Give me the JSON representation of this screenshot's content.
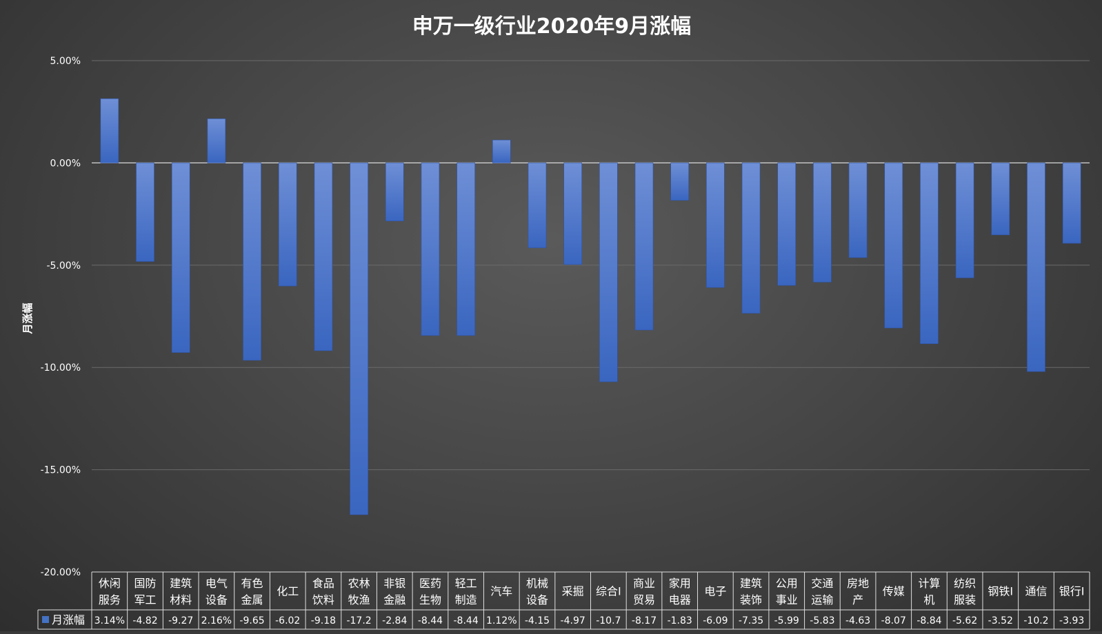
{
  "chart_data": {
    "type": "bar",
    "title": "申万一级行业2020年9月涨幅",
    "ylabel": "月涨幅",
    "ylim": [
      -20,
      5
    ],
    "yticks": [
      5,
      0,
      -5,
      -10,
      -15,
      -20
    ],
    "ytick_labels": [
      "5.00%",
      "0.00%",
      "-5.00%",
      "-10.00%",
      "-15.00%",
      "-20.00%"
    ],
    "grid": true,
    "data_table": true,
    "bar_color": "#4472c4",
    "categories": [
      [
        "休闲",
        "服务"
      ],
      [
        "国防",
        "军工"
      ],
      [
        "建筑",
        "材料"
      ],
      [
        "电气",
        "设备"
      ],
      [
        "有色",
        "金属"
      ],
      [
        "化工"
      ],
      [
        "食品",
        "饮料"
      ],
      [
        "农林",
        "牧渔"
      ],
      [
        "非银",
        "金融"
      ],
      [
        "医药",
        "生物"
      ],
      [
        "轻工",
        "制造"
      ],
      [
        "汽车"
      ],
      [
        "机械",
        "设备"
      ],
      [
        "采掘"
      ],
      [
        "综合Ⅰ"
      ],
      [
        "商业",
        "贸易"
      ],
      [
        "家用",
        "电器"
      ],
      [
        "电子"
      ],
      [
        "建筑",
        "装饰"
      ],
      [
        "公用",
        "事业"
      ],
      [
        "交通",
        "运输"
      ],
      [
        "房地",
        "产"
      ],
      [
        "传媒"
      ],
      [
        "计算",
        "机"
      ],
      [
        "纺织",
        "服装"
      ],
      [
        "钢铁Ⅰ"
      ],
      [
        "通信"
      ],
      [
        "银行Ⅰ"
      ]
    ],
    "series": [
      {
        "name": "月涨幅",
        "values": [
          3.14,
          -4.82,
          -9.27,
          2.16,
          -9.65,
          -6.02,
          -9.18,
          -17.2,
          -2.84,
          -8.44,
          -8.44,
          1.12,
          -4.15,
          -4.97,
          -10.7,
          -8.17,
          -1.83,
          -6.09,
          -7.35,
          -5.99,
          -5.83,
          -4.63,
          -8.07,
          -8.84,
          -5.62,
          -3.52,
          -10.2,
          -3.93
        ],
        "table_labels": [
          "3.14%",
          "-4.82",
          "-9.27",
          "2.16%",
          "-9.65",
          "-6.02",
          "-9.18",
          "-17.2",
          "-2.84",
          "-8.44",
          "-8.44",
          "1.12%",
          "-4.15",
          "-4.97",
          "-10.7",
          "-8.17",
          "-1.83",
          "-6.09",
          "-7.35",
          "-5.99",
          "-5.83",
          "-4.63",
          "-8.07",
          "-8.84",
          "-5.62",
          "-3.52",
          "-10.2",
          "-3.93"
        ]
      }
    ]
  }
}
